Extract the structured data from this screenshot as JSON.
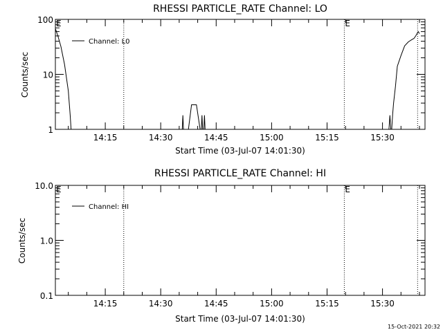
{
  "chart_data": [
    {
      "type": "line",
      "title": "RHESSI PARTICLE_RATE Channel: LO",
      "xlabel": "Start Time (03-Jul-07 14:01:30)",
      "ylabel": "Counts/sec",
      "y_scale": "log",
      "ylim": [
        1,
        100
      ],
      "xlim": [
        "14:01:30",
        "15:41:30"
      ],
      "x_ticks": [
        "14:15",
        "14:30",
        "14:45",
        "15:00",
        "15:15",
        "15:30"
      ],
      "y_ticks": [
        "1",
        "10",
        "100"
      ],
      "legend_location": "top-left",
      "series": [
        {
          "name": "Channel: L0",
          "color": "#000000",
          "segments": [
            [
              [
                "14:01:30",
                68
              ],
              [
                "14:02:10",
                50
              ],
              [
                "14:03:00",
                32
              ],
              [
                "14:04:00",
                15
              ],
              [
                "14:05:00",
                5
              ],
              [
                "14:05:30",
                1.8
              ],
              [
                "14:05:45",
                1
              ]
            ],
            [
              [
                "14:35:50",
                1
              ],
              [
                "14:36:00",
                1.8
              ],
              [
                "14:36:10",
                1
              ]
            ],
            [
              [
                "14:37:30",
                1
              ],
              [
                "14:38:20",
                2.8
              ],
              [
                "14:39:40",
                2.8
              ],
              [
                "14:40:40",
                1
              ]
            ],
            [
              [
                "14:41:00",
                1
              ],
              [
                "14:41:10",
                1.8
              ],
              [
                "14:41:20",
                1
              ]
            ],
            [
              [
                "14:41:40",
                1
              ],
              [
                "14:41:50",
                1.8
              ],
              [
                "14:42:00",
                1
              ]
            ],
            [
              [
                "15:31:45",
                1
              ],
              [
                "15:32:00",
                1.8
              ],
              [
                "15:32:15",
                1
              ]
            ],
            [
              [
                "15:32:30",
                1
              ],
              [
                "15:32:45",
                1.9
              ],
              [
                "15:33:00",
                3
              ],
              [
                "15:33:30",
                6
              ],
              [
                "15:34:00",
                14
              ],
              [
                "15:35:00",
                22
              ],
              [
                "15:36:00",
                33
              ],
              [
                "15:37:00",
                39
              ],
              [
                "15:38:00",
                43
              ],
              [
                "15:38:30",
                45
              ],
              [
                "15:39:00",
                50
              ],
              [
                "15:39:40",
                60
              ],
              [
                "15:40:00",
                55
              ]
            ]
          ]
        }
      ],
      "markers": [
        {
          "label": "E",
          "time": "14:01:30"
        },
        {
          "label": "",
          "time": "14:20:00"
        },
        {
          "label": "E",
          "time": "15:19:40"
        },
        {
          "label": "",
          "time": "15:39:30"
        }
      ]
    },
    {
      "type": "line",
      "title": "RHESSI PARTICLE_RATE Channel: HI",
      "xlabel": "Start Time (03-Jul-07 14:01:30)",
      "ylabel": "Counts/sec",
      "y_scale": "log",
      "ylim": [
        0.1,
        10
      ],
      "xlim": [
        "14:01:30",
        "15:41:30"
      ],
      "x_ticks": [
        "14:15",
        "14:30",
        "14:45",
        "15:00",
        "15:15",
        "15:30"
      ],
      "y_ticks": [
        "0.1",
        "1.0",
        "10.0"
      ],
      "legend_location": "top-left",
      "series": [
        {
          "name": "Channel: HI",
          "color": "#000000",
          "segments": []
        }
      ],
      "markers": [
        {
          "label": "E",
          "time": "14:01:30"
        },
        {
          "label": "",
          "time": "14:20:00"
        },
        {
          "label": "E",
          "time": "15:19:40"
        },
        {
          "label": "",
          "time": "15:39:30"
        }
      ]
    }
  ],
  "footer": {
    "timestamp": "15-Oct-2021 20:32"
  }
}
